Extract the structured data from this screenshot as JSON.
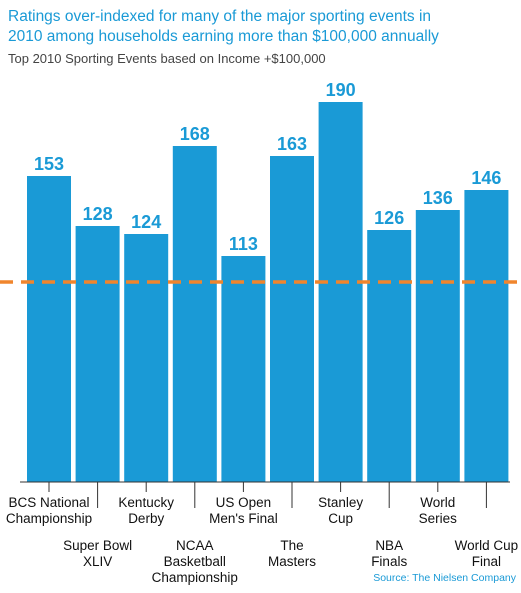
{
  "title_lines": [
    "Ratings over-indexed for many of the major sporting events in",
    "2010 among households earning more than $100,000 annually"
  ],
  "subtitle": "Top 2010 Sporting Events based on Income +$100,000",
  "source": "Source: The Nielsen Company",
  "colors": {
    "bar": "#1a9ad6",
    "value_label": "#1a9ad6",
    "reference_line": "#f0852d",
    "title": "#1a9ad6"
  },
  "chart_data": {
    "type": "bar",
    "title": "",
    "xlabel": "",
    "ylabel": "",
    "ylim": [
      0,
      190
    ],
    "reference_value": 100,
    "categories": [
      [
        "BCS National",
        "Championship"
      ],
      [
        "Super Bowl",
        "XLIV"
      ],
      [
        "Kentucky",
        "Derby"
      ],
      [
        "NCAA",
        "Basketball",
        "Championship"
      ],
      [
        "US Open",
        "Men's Final"
      ],
      [
        "The",
        "Masters"
      ],
      [
        "Stanley",
        "Cup"
      ],
      [
        "NBA",
        "Finals"
      ],
      [
        "World",
        "Series"
      ],
      [
        "World Cup",
        "Final"
      ]
    ],
    "values": [
      153,
      128,
      124,
      168,
      113,
      163,
      190,
      126,
      136,
      146
    ]
  }
}
